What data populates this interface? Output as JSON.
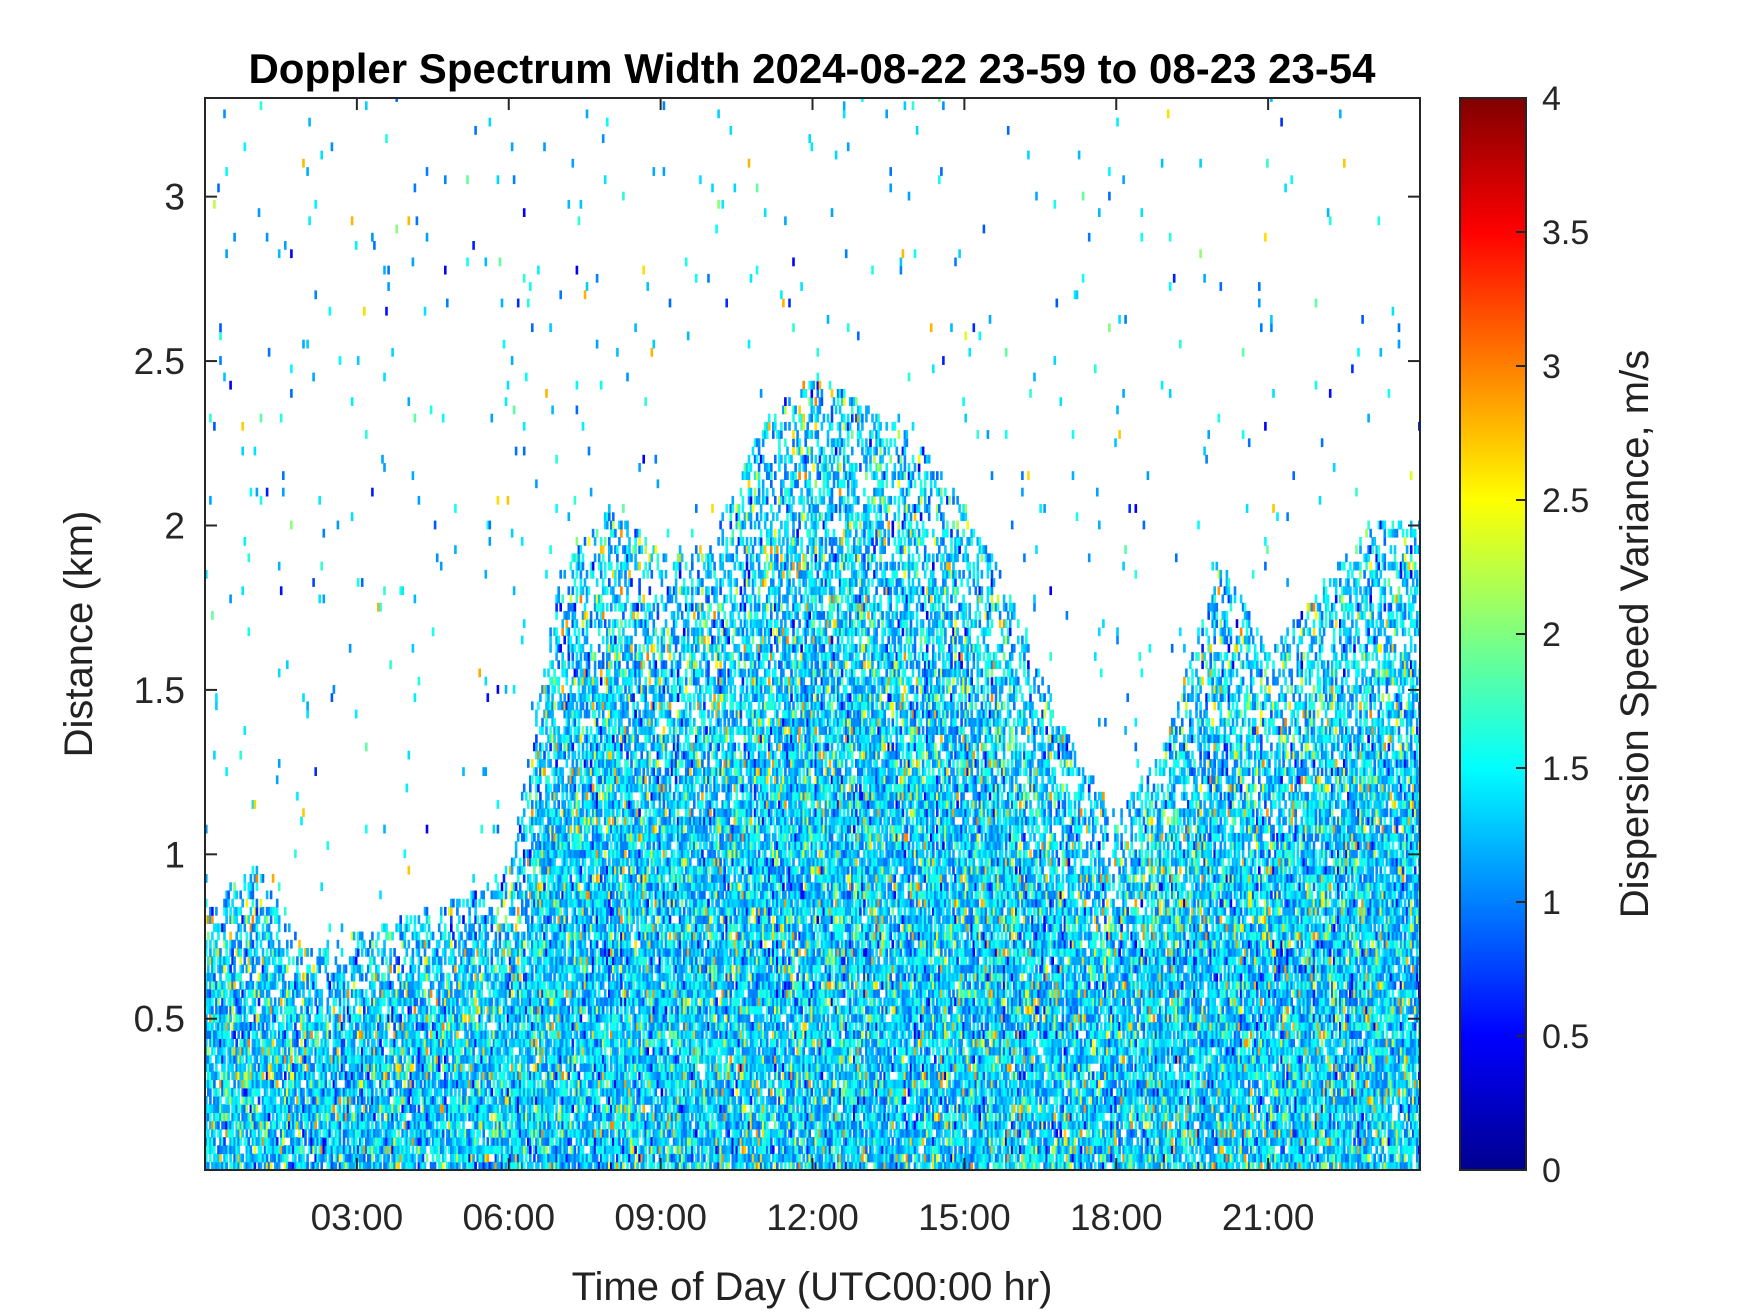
{
  "chart_data": {
    "type": "heatmap",
    "title": "Doppler Spectrum Width 2024-08-22 23-59 to 08-23 23-54",
    "xlabel": "Time of Day (UTC00:00 hr)",
    "ylabel": "Distance (km)",
    "x_unit": "hours UTC",
    "xlim": [
      0,
      24
    ],
    "ylim": [
      0.04,
      3.3
    ],
    "x_ticks": [
      {
        "value": 3,
        "label": "03:00"
      },
      {
        "value": 6,
        "label": "06:00"
      },
      {
        "value": 9,
        "label": "09:00"
      },
      {
        "value": 12,
        "label": "12:00"
      },
      {
        "value": 15,
        "label": "15:00"
      },
      {
        "value": 18,
        "label": "18:00"
      },
      {
        "value": 21,
        "label": "21:00"
      }
    ],
    "y_ticks": [
      {
        "value": 0.5,
        "label": "0.5"
      },
      {
        "value": 1,
        "label": "1"
      },
      {
        "value": 1.5,
        "label": "1.5"
      },
      {
        "value": 2,
        "label": "2"
      },
      {
        "value": 2.5,
        "label": "2.5"
      },
      {
        "value": 3,
        "label": "3"
      }
    ],
    "colorbar": {
      "label": "Dispersion Speed Variance, m/s",
      "range": [
        0,
        4
      ],
      "colormap": "jet",
      "ticks": [
        {
          "value": 0,
          "label": "0"
        },
        {
          "value": 0.5,
          "label": "0.5"
        },
        {
          "value": 1,
          "label": "1"
        },
        {
          "value": 1.5,
          "label": "1.5"
        },
        {
          "value": 2,
          "label": "2"
        },
        {
          "value": 2.5,
          "label": "2.5"
        },
        {
          "value": 3,
          "label": "3"
        },
        {
          "value": 3.5,
          "label": "3.5"
        },
        {
          "value": 4,
          "label": "4"
        }
      ]
    },
    "signal_top_km_by_hour": [
      {
        "t": 0.0,
        "top": 0.85
      },
      {
        "t": 1.0,
        "top": 0.95
      },
      {
        "t": 2.0,
        "top": 0.7
      },
      {
        "t": 3.0,
        "top": 0.75
      },
      {
        "t": 4.0,
        "top": 0.8
      },
      {
        "t": 5.0,
        "top": 0.85
      },
      {
        "t": 6.0,
        "top": 0.95
      },
      {
        "t": 7.0,
        "top": 1.85
      },
      {
        "t": 8.0,
        "top": 2.05
      },
      {
        "t": 9.0,
        "top": 1.9
      },
      {
        "t": 10.0,
        "top": 1.95
      },
      {
        "t": 11.0,
        "top": 2.3
      },
      {
        "t": 12.0,
        "top": 2.45
      },
      {
        "t": 13.0,
        "top": 2.35
      },
      {
        "t": 14.0,
        "top": 2.25
      },
      {
        "t": 15.0,
        "top": 2.05
      },
      {
        "t": 16.0,
        "top": 1.75
      },
      {
        "t": 17.0,
        "top": 1.35
      },
      {
        "t": 18.0,
        "top": 1.1
      },
      {
        "t": 19.0,
        "top": 1.35
      },
      {
        "t": 20.0,
        "top": 1.9
      },
      {
        "t": 21.0,
        "top": 1.6
      },
      {
        "t": 22.0,
        "top": 1.8
      },
      {
        "t": 23.0,
        "top": 2.0
      },
      {
        "t": 24.0,
        "top": 2.0
      }
    ],
    "typical_value_range": [
      0.9,
      1.7
    ],
    "colors": {
      "jet_stops": [
        "#00008f",
        "#0000ff",
        "#00ffff",
        "#ffff00",
        "#ff0000",
        "#800000"
      ]
    }
  }
}
